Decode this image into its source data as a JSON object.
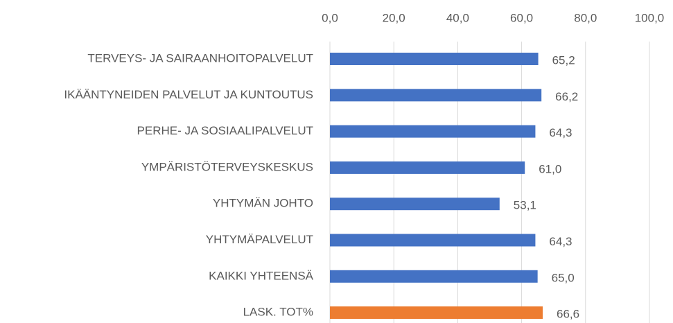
{
  "chart_data": {
    "type": "barh",
    "categories": [
      "TERVEYS- JA SAIRAANHOITOPALVELUT",
      "IKÄÄNTYNEIDEN PALVELUT JA KUNTOUTUS",
      "PERHE- JA SOSIAALIPALVELUT",
      "YMPÄRISTÖTERVEYSKESKUS",
      "YHTYMÄN JOHTO",
      "YHTYMÄPALVELUT",
      "KAIKKI YHTEENSÄ",
      "LASK. TOT%"
    ],
    "values": [
      65.2,
      66.2,
      64.3,
      61.0,
      53.1,
      64.3,
      65.0,
      66.6
    ],
    "value_labels": [
      "65,2",
      "66,2",
      "64,3",
      "61,0",
      "53,1",
      "64,3",
      "65,0",
      "66,6"
    ],
    "colors": [
      "#4472c4",
      "#4472c4",
      "#4472c4",
      "#4472c4",
      "#4472c4",
      "#4472c4",
      "#4472c4",
      "#ed7d31"
    ],
    "xlim": [
      0,
      100
    ],
    "xticks": [
      {
        "value": 0,
        "label": "0,0"
      },
      {
        "value": 20,
        "label": "20,0"
      },
      {
        "value": 40,
        "label": "40,0"
      },
      {
        "value": 60,
        "label": "60,0"
      },
      {
        "value": 80,
        "label": "80,0"
      },
      {
        "value": 100,
        "label": "100,0"
      }
    ],
    "grid": true
  }
}
